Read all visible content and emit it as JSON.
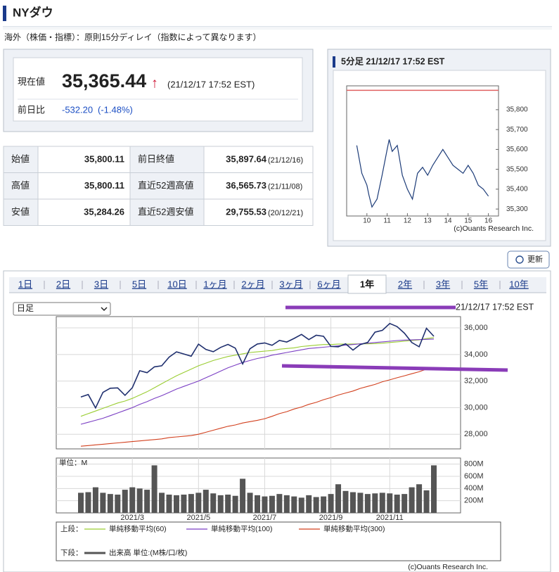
{
  "header": {
    "title": "NYダウ"
  },
  "notice": "海外（株価・指標）：原則15分ディレイ（指数によって異なります）",
  "quote": {
    "current_label": "現在値",
    "current": "35,365.44",
    "arrow": "↑",
    "time": "(21/12/17 17:52 EST)",
    "change_label": "前日比",
    "change": "-532.20",
    "change_pct": "(-1.48%)"
  },
  "stats": {
    "rows": [
      [
        "始値",
        "35,800.11",
        "前日終値",
        "35,897.64",
        "(21/12/16)"
      ],
      [
        "高値",
        "35,800.11",
        "直近52週高値",
        "36,565.73",
        "(21/11/08)"
      ],
      [
        "安値",
        "35,284.26",
        "直近52週安値",
        "29,755.53",
        "(20/12/21)"
      ]
    ]
  },
  "refresh": "更新",
  "tabs": {
    "items": [
      "1日",
      "2日",
      "3日",
      "5日",
      "10日",
      "1ヶ月",
      "2ヶ月",
      "3ヶ月",
      "6ヶ月",
      "1年",
      "2年",
      "3年",
      "5年",
      "10年"
    ],
    "active": 9
  },
  "period_select": "日足",
  "footer": {
    "credit": "(c)Ouants Research Inc."
  },
  "chart_data": [
    {
      "type": "line",
      "title": "5分足 21/12/17 17:52 EST",
      "credit": "(c)Ouants Research Inc.",
      "x": [
        9.5,
        9.75,
        10.0,
        10.1,
        10.25,
        10.5,
        10.75,
        11.0,
        11.1,
        11.25,
        11.5,
        11.75,
        12.0,
        12.25,
        12.5,
        12.75,
        13.0,
        13.25,
        13.5,
        13.75,
        14.0,
        14.25,
        14.5,
        14.75,
        15.0,
        15.25,
        15.5,
        15.75,
        16.0
      ],
      "values": [
        35620,
        35480,
        35420,
        35370,
        35310,
        35350,
        35470,
        35600,
        35650,
        35590,
        35620,
        35470,
        35400,
        35350,
        35480,
        35510,
        35470,
        35520,
        35560,
        35600,
        35560,
        35520,
        35500,
        35480,
        35520,
        35480,
        35420,
        35400,
        35365
      ],
      "color": "#1d3c78",
      "reference_line": 35897.64,
      "reference_color": "#e06060",
      "xlim": [
        9,
        16.5
      ],
      "xticks": [
        10,
        11,
        12,
        13,
        14,
        15,
        16
      ],
      "ylim": [
        35265,
        35920
      ],
      "yticks": [
        {
          "value": 35300,
          "label": "35,300"
        },
        {
          "value": 35400,
          "label": "35,400"
        },
        {
          "value": 35500,
          "label": "35,500"
        },
        {
          "value": 35600,
          "label": "35,600"
        },
        {
          "value": 35700,
          "label": "35,700"
        },
        {
          "value": 35800,
          "label": "35,800"
        }
      ]
    },
    {
      "type": "line",
      "timestamp": "21/12/17 17:52 EST",
      "legend_label": "上段：",
      "values": [
        30800,
        30990,
        29980,
        31150,
        31460,
        31490,
        30930,
        31500,
        32780,
        32630,
        33070,
        33150,
        33800,
        34200,
        34040,
        33870,
        34780,
        34380,
        34210,
        34530,
        34760,
        34480,
        33290,
        34430,
        34790,
        34870,
        34690,
        35060,
        34940,
        35210,
        35510,
        35120,
        35450,
        35370,
        34610,
        34580,
        34800,
        34330,
        34750,
        34910,
        35680,
        35820,
        36330,
        36100,
        35600,
        34900,
        34580,
        35970,
        35370
      ],
      "color": "#1f2f6e",
      "series": [
        {
          "name": "単純移動平均(60)",
          "color": "#9acd32",
          "values": [
            29350,
            29550,
            29750,
            29950,
            30150,
            30350,
            30500,
            30700,
            30950,
            31200,
            31500,
            31800,
            32100,
            32400,
            32650,
            32900,
            33150,
            33350,
            33550,
            33700,
            33850,
            33950,
            34050,
            34150,
            34200,
            34250,
            34300,
            34400,
            34450,
            34500,
            34600,
            34650,
            34700,
            34750,
            34750,
            34780,
            34780,
            34790,
            34800,
            34800,
            34820,
            34850,
            34900,
            34950,
            35000,
            35050,
            35100,
            35200,
            35270
          ]
        },
        {
          "name": "単純移動平均(100)",
          "color": "#7b3fc4",
          "values": [
            28750,
            28900,
            29050,
            29200,
            29400,
            29600,
            29800,
            30000,
            30250,
            30450,
            30700,
            30900,
            31150,
            31400,
            31600,
            31800,
            32000,
            32250,
            32500,
            32750,
            33000,
            33200,
            33400,
            33550,
            33700,
            33800,
            33950,
            34050,
            34150,
            34250,
            34350,
            34450,
            34500,
            34550,
            34600,
            34650,
            34700,
            34750,
            34800,
            34850,
            34900,
            34950,
            35000,
            35050,
            35080,
            35100,
            35120,
            35140,
            35160
          ]
        },
        {
          "name": "単純移動平均(300)",
          "color": "#d2401e",
          "values": [
            27100,
            27150,
            27200,
            27250,
            27300,
            27350,
            27400,
            27450,
            27500,
            27550,
            27600,
            27650,
            27750,
            27800,
            27850,
            27900,
            28000,
            28150,
            28300,
            28450,
            28600,
            28700,
            28850,
            28950,
            29050,
            29170,
            29350,
            29550,
            29700,
            29900,
            30050,
            30250,
            30400,
            30600,
            30760,
            30950,
            31100,
            31250,
            31450,
            31600,
            31750,
            31950,
            32090,
            32250,
            32400,
            32550,
            32700,
            32900,
            33040
          ]
        }
      ],
      "ylim": [
        26900,
        36850
      ],
      "yticks": [
        {
          "value": 28000,
          "label": "28,000"
        },
        {
          "value": 30000,
          "label": "30,000"
        },
        {
          "value": 32000,
          "label": "32,000"
        },
        {
          "value": 34000,
          "label": "34,000"
        },
        {
          "value": 36000,
          "label": "36,000"
        }
      ],
      "grid": true
    },
    {
      "type": "bar",
      "unit_label": "単位：M",
      "legend_label": "下段：",
      "categories": [
        null,
        null,
        null,
        null,
        null,
        null,
        null,
        "2021/3",
        null,
        null,
        null,
        null,
        null,
        null,
        null,
        null,
        "2021/5",
        null,
        null,
        null,
        null,
        null,
        null,
        null,
        null,
        "2021/7",
        null,
        null,
        null,
        null,
        null,
        null,
        null,
        null,
        "2021/9",
        null,
        null,
        null,
        null,
        null,
        null,
        null,
        "2021/11",
        null,
        null,
        null,
        null,
        null,
        null
      ],
      "series": [
        {
          "name": "出来高 単位:(M株/口/枚)",
          "color": "#555555",
          "values": [
            330,
            340,
            420,
            330,
            310,
            300,
            380,
            420,
            400,
            380,
            780,
            330,
            300,
            290,
            300,
            310,
            330,
            380,
            320,
            290,
            300,
            280,
            560,
            330,
            290,
            270,
            280,
            310,
            290,
            270,
            250,
            290,
            260,
            270,
            310,
            470,
            360,
            340,
            330,
            310,
            320,
            330,
            320,
            300,
            310,
            420,
            470,
            370,
            780
          ]
        }
      ],
      "ylim": [
        0,
        900
      ],
      "yticks": [
        {
          "value": 200,
          "label": "200M"
        },
        {
          "value": 400,
          "label": "400M"
        },
        {
          "value": 600,
          "label": "600M"
        },
        {
          "value": 800,
          "label": "800M"
        }
      ],
      "grid": true
    }
  ]
}
